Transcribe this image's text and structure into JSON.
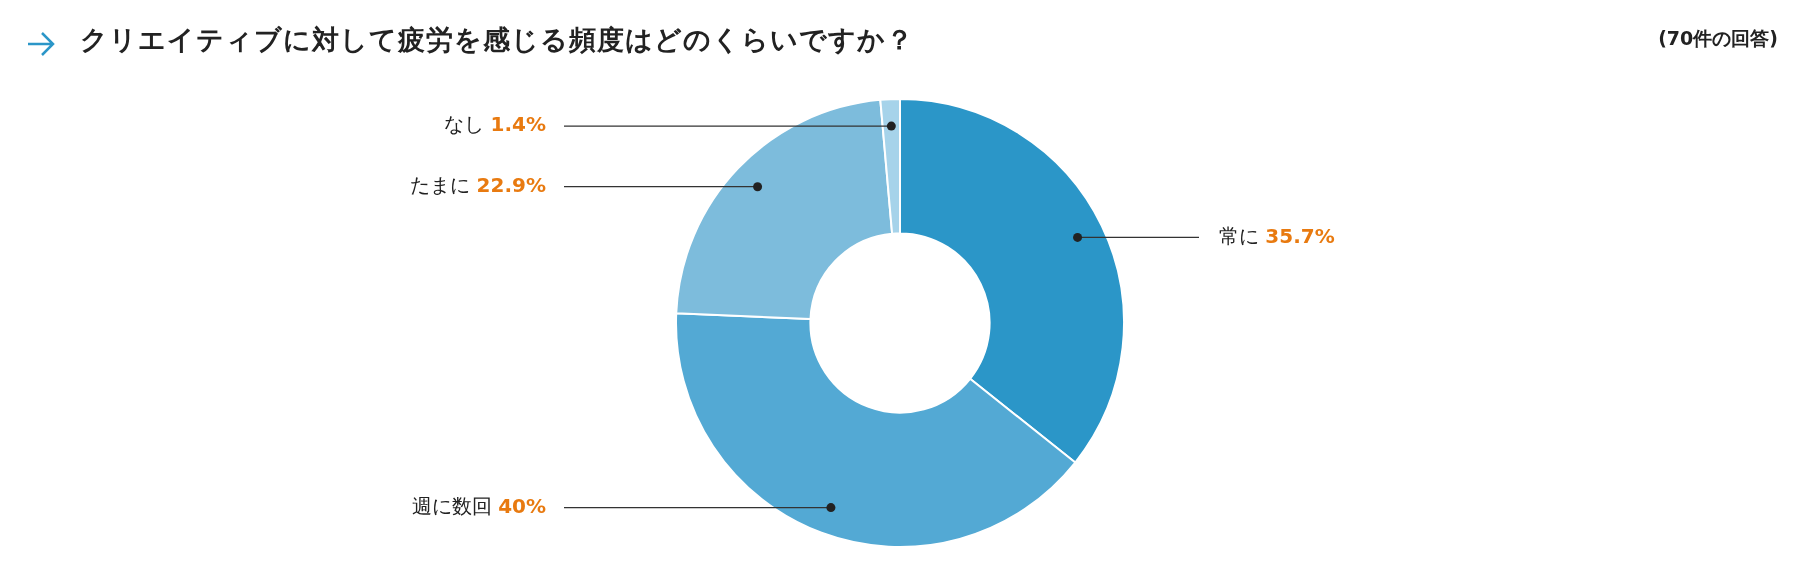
{
  "chart_data": {
    "type": "donut",
    "title": "クリエイティブに対して疲労を感じる頻度はどのくらいですか？",
    "annotations": [
      "(70件の回答)"
    ],
    "categories": [
      "常に",
      "週に数回",
      "たまに",
      "なし"
    ],
    "values": [
      35.7,
      40,
      22.9,
      1.4
    ],
    "value_labels": [
      "35.7%",
      "40%",
      "22.9%",
      "1.4%"
    ],
    "colors": [
      "#2b96c8",
      "#53a9d4",
      "#7dbcdc",
      "#a6d3ea"
    ],
    "legend": false
  }
}
